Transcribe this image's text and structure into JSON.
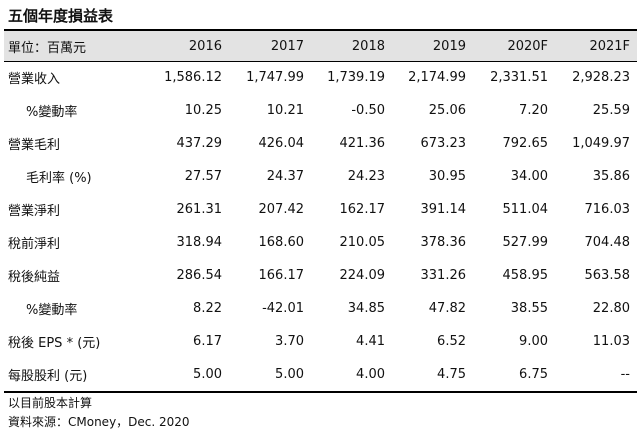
{
  "title": "五個年度損益表",
  "header": [
    "單位：百萬元",
    "2016",
    "2017",
    "2018",
    "2019",
    "2020F",
    "2021F"
  ],
  "rows": [
    {
      "label": "營業收入",
      "indent": false,
      "values": [
        "1,586.12",
        "1,747.99",
        "1,739.19",
        "2,174.99",
        "2,331.51",
        "2,928.23"
      ]
    },
    {
      "label": "%變動率",
      "indent": true,
      "values": [
        "10.25",
        "10.21",
        "-0.50",
        "25.06",
        "7.20",
        "25.59"
      ]
    },
    {
      "label": "營業毛利",
      "indent": false,
      "values": [
        "437.29",
        "426.04",
        "421.36",
        "673.23",
        "792.65",
        "1,049.97"
      ]
    },
    {
      "label": "毛利率 (%)",
      "indent": true,
      "values": [
        "27.57",
        "24.37",
        "24.23",
        "30.95",
        "34.00",
        "35.86"
      ]
    },
    {
      "label": "營業淨利",
      "indent": false,
      "values": [
        "261.31",
        "207.42",
        "162.17",
        "391.14",
        "511.04",
        "716.03"
      ]
    },
    {
      "label": "稅前淨利",
      "indent": false,
      "values": [
        "318.94",
        "168.60",
        "210.05",
        "378.36",
        "527.99",
        "704.48"
      ]
    },
    {
      "label": "稅後純益",
      "indent": false,
      "values": [
        "286.54",
        "166.17",
        "224.09",
        "331.26",
        "458.95",
        "563.58"
      ]
    },
    {
      "label": "%變動率",
      "indent": true,
      "values": [
        "8.22",
        "-42.01",
        "34.85",
        "47.82",
        "38.55",
        "22.80"
      ]
    },
    {
      "label": "稅後 EPS * (元)",
      "indent": false,
      "values": [
        "6.17",
        "3.70",
        "4.41",
        "6.52",
        "9.00",
        "11.03"
      ]
    },
    {
      "label": "每股股利 (元)",
      "indent": false,
      "values": [
        "5.00",
        "5.00",
        "4.00",
        "4.75",
        "6.75",
        "--"
      ]
    }
  ],
  "notes": [
    "以目前股本計算",
    "資料來源：CMoney，Dec. 2020"
  ]
}
